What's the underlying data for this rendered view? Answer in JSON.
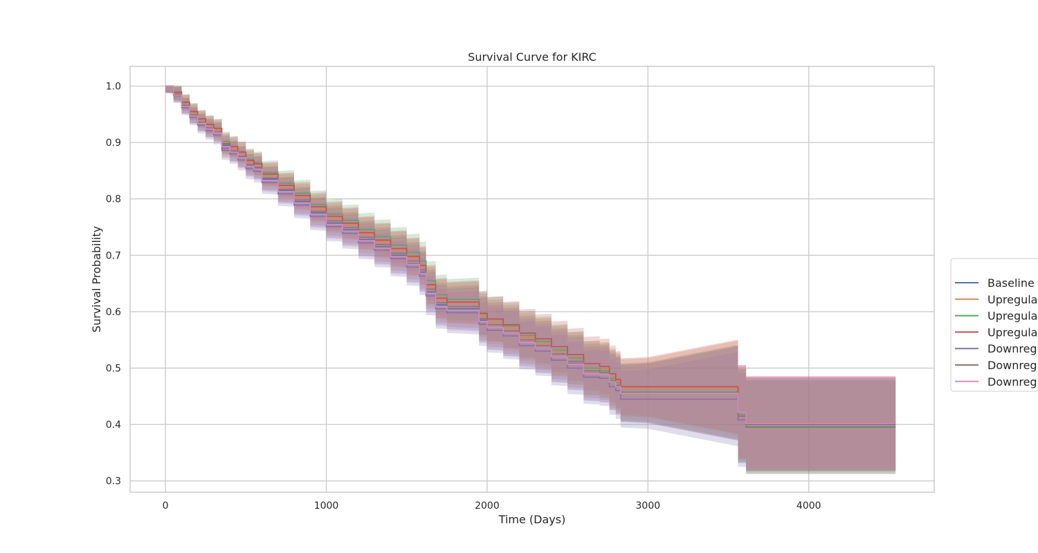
{
  "chart_data": {
    "type": "line",
    "title": "Survival Curve for KIRC",
    "xlabel": "Time (Days)",
    "ylabel": "Survival Probability",
    "xlim": [
      -220,
      4780
    ],
    "ylim": [
      0.28,
      1.035
    ],
    "xticks": [
      0,
      1000,
      2000,
      3000,
      4000
    ],
    "xtick_labels": [
      "0",
      "1000",
      "2000",
      "3000",
      "4000"
    ],
    "yticks": [
      0.3,
      0.4,
      0.5,
      0.6,
      0.7,
      0.8,
      0.9,
      1.0
    ],
    "ytick_labels": [
      "0.3",
      "0.4",
      "0.5",
      "0.6",
      "0.7",
      "0.8",
      "0.9",
      "1.0"
    ],
    "grid": true,
    "legend_position": "right (outside plot, clipped)",
    "confidence_bands": true,
    "series": [
      {
        "name": "Baseline",
        "color": "#4c72b0",
        "x": [
          0,
          50,
          100,
          150,
          200,
          250,
          300,
          350,
          400,
          450,
          500,
          550,
          600,
          700,
          800,
          900,
          1000,
          1100,
          1200,
          1300,
          1400,
          1500,
          1580,
          1620,
          1680,
          1750,
          1900,
          1950,
          2000,
          2100,
          2200,
          2300,
          2400,
          2500,
          2600,
          2700,
          2760,
          2800,
          2830,
          3000,
          3550,
          3560,
          3610,
          4540
        ],
        "y": [
          1.0,
          0.985,
          0.965,
          0.948,
          0.935,
          0.925,
          0.918,
          0.895,
          0.885,
          0.875,
          0.86,
          0.855,
          0.835,
          0.815,
          0.795,
          0.775,
          0.757,
          0.745,
          0.728,
          0.715,
          0.7,
          0.685,
          0.67,
          0.635,
          0.612,
          0.605,
          0.605,
          0.585,
          0.572,
          0.562,
          0.545,
          0.535,
          0.52,
          0.508,
          0.49,
          0.488,
          0.475,
          0.468,
          0.455,
          0.455,
          0.455,
          0.415,
          0.4,
          0.4
        ]
      },
      {
        "name": "Upregulat",
        "color": "#dd8452",
        "x": [
          0,
          50,
          100,
          150,
          200,
          250,
          300,
          350,
          400,
          450,
          500,
          550,
          600,
          700,
          800,
          900,
          1000,
          1100,
          1200,
          1300,
          1400,
          1500,
          1580,
          1620,
          1680,
          1750,
          1900,
          1950,
          2000,
          2100,
          2200,
          2300,
          2400,
          2500,
          2600,
          2700,
          2760,
          2800,
          2830,
          3000,
          3550,
          3560,
          3610,
          4540
        ],
        "y": [
          1.0,
          0.988,
          0.97,
          0.953,
          0.94,
          0.93,
          0.922,
          0.9,
          0.89,
          0.88,
          0.866,
          0.86,
          0.842,
          0.822,
          0.803,
          0.783,
          0.766,
          0.755,
          0.738,
          0.725,
          0.71,
          0.696,
          0.68,
          0.645,
          0.622,
          0.615,
          0.615,
          0.593,
          0.582,
          0.571,
          0.555,
          0.544,
          0.53,
          0.517,
          0.5,
          0.497,
          0.485,
          0.477,
          0.465,
          0.465,
          0.465,
          0.422,
          0.403,
          0.403
        ]
      },
      {
        "name": "Upregulat",
        "color": "#55a868",
        "x": [
          0,
          50,
          100,
          150,
          200,
          250,
          300,
          350,
          400,
          450,
          500,
          550,
          600,
          700,
          800,
          900,
          1000,
          1100,
          1200,
          1300,
          1400,
          1500,
          1580,
          1620,
          1680,
          1750,
          1900,
          1950,
          2000,
          2100,
          2200,
          2300,
          2400,
          2500,
          2600,
          2700,
          2760,
          2800,
          2830,
          3000,
          3550,
          3560,
          3610,
          4540
        ],
        "y": [
          1.0,
          0.99,
          0.972,
          0.955,
          0.942,
          0.932,
          0.925,
          0.902,
          0.893,
          0.883,
          0.87,
          0.864,
          0.847,
          0.828,
          0.81,
          0.79,
          0.773,
          0.762,
          0.746,
          0.733,
          0.718,
          0.705,
          0.69,
          0.655,
          0.63,
          0.622,
          0.622,
          0.598,
          0.587,
          0.575,
          0.558,
          0.547,
          0.532,
          0.518,
          0.5,
          0.495,
          0.482,
          0.474,
          0.458,
          0.458,
          0.458,
          0.418,
          0.396,
          0.396
        ]
      },
      {
        "name": "Upregulat",
        "color": "#c44e52",
        "x": [
          0,
          50,
          100,
          150,
          200,
          250,
          300,
          350,
          400,
          450,
          500,
          550,
          600,
          700,
          800,
          900,
          1000,
          1100,
          1200,
          1300,
          1400,
          1500,
          1580,
          1620,
          1680,
          1750,
          1900,
          1950,
          2000,
          2100,
          2200,
          2300,
          2400,
          2500,
          2600,
          2700,
          2760,
          2800,
          2830,
          3000,
          3550,
          3560,
          3610,
          4540
        ],
        "y": [
          1.0,
          0.989,
          0.971,
          0.955,
          0.942,
          0.932,
          0.925,
          0.898,
          0.893,
          0.883,
          0.868,
          0.862,
          0.844,
          0.824,
          0.806,
          0.786,
          0.769,
          0.757,
          0.74,
          0.727,
          0.712,
          0.698,
          0.682,
          0.648,
          0.624,
          0.617,
          0.617,
          0.597,
          0.587,
          0.577,
          0.562,
          0.552,
          0.538,
          0.524,
          0.508,
          0.503,
          0.49,
          0.48,
          0.467,
          0.467,
          0.467,
          0.422,
          0.402,
          0.402
        ]
      },
      {
        "name": "Downregu",
        "color": "#8172b3",
        "x": [
          0,
          50,
          100,
          150,
          200,
          250,
          300,
          350,
          400,
          450,
          500,
          550,
          600,
          700,
          800,
          900,
          1000,
          1100,
          1200,
          1300,
          1400,
          1500,
          1580,
          1620,
          1680,
          1750,
          1900,
          1950,
          2000,
          2100,
          2200,
          2300,
          2400,
          2500,
          2600,
          2700,
          2760,
          2800,
          2830,
          3000,
          3550,
          3560,
          3610,
          4540
        ],
        "y": [
          1.0,
          0.983,
          0.962,
          0.945,
          0.931,
          0.921,
          0.913,
          0.89,
          0.88,
          0.869,
          0.854,
          0.849,
          0.829,
          0.809,
          0.789,
          0.769,
          0.751,
          0.739,
          0.722,
          0.709,
          0.694,
          0.679,
          0.663,
          0.628,
          0.605,
          0.598,
          0.598,
          0.578,
          0.567,
          0.557,
          0.54,
          0.53,
          0.514,
          0.5,
          0.484,
          0.482,
          0.467,
          0.46,
          0.445,
          0.445,
          0.445,
          0.408,
          0.4,
          0.4
        ]
      },
      {
        "name": "Downregu",
        "color": "#937860",
        "x": [
          0,
          50,
          100,
          150,
          200,
          250,
          300,
          350,
          400,
          450,
          500,
          550,
          600,
          700,
          800,
          900,
          1000,
          1100,
          1200,
          1300,
          1400,
          1500,
          1580,
          1620,
          1680,
          1750,
          1900,
          1950,
          2000,
          2100,
          2200,
          2300,
          2400,
          2500,
          2600,
          2700,
          2760,
          2800,
          2830,
          3000,
          3550,
          3560,
          3610,
          4540
        ],
        "y": [
          1.0,
          0.986,
          0.966,
          0.949,
          0.936,
          0.926,
          0.919,
          0.886,
          0.884,
          0.874,
          0.861,
          0.856,
          0.837,
          0.817,
          0.798,
          0.778,
          0.761,
          0.749,
          0.732,
          0.719,
          0.704,
          0.69,
          0.674,
          0.64,
          0.616,
          0.609,
          0.609,
          0.588,
          0.577,
          0.566,
          0.55,
          0.54,
          0.525,
          0.512,
          0.495,
          0.492,
          0.478,
          0.47,
          0.456,
          0.456,
          0.456,
          0.415,
          0.395,
          0.395
        ]
      },
      {
        "name": "Downregu",
        "color": "#da8bc3",
        "x": [
          0,
          50,
          100,
          150,
          200,
          250,
          300,
          350,
          400,
          450,
          500,
          550,
          600,
          700,
          800,
          900,
          1000,
          1100,
          1200,
          1300,
          1400,
          1500,
          1580,
          1620,
          1680,
          1750,
          1900,
          1950,
          2000,
          2100,
          2200,
          2300,
          2400,
          2500,
          2600,
          2700,
          2760,
          2800,
          2830,
          3000,
          3550,
          3560,
          3610,
          4540
        ],
        "y": [
          1.0,
          0.984,
          0.964,
          0.947,
          0.934,
          0.924,
          0.917,
          0.893,
          0.883,
          0.873,
          0.858,
          0.853,
          0.833,
          0.813,
          0.793,
          0.773,
          0.755,
          0.743,
          0.726,
          0.713,
          0.698,
          0.684,
          0.668,
          0.633,
          0.609,
          0.603,
          0.603,
          0.583,
          0.572,
          0.562,
          0.545,
          0.535,
          0.52,
          0.507,
          0.49,
          0.488,
          0.475,
          0.467,
          0.455,
          0.455,
          0.455,
          0.422,
          0.402,
          0.402
        ]
      }
    ]
  }
}
